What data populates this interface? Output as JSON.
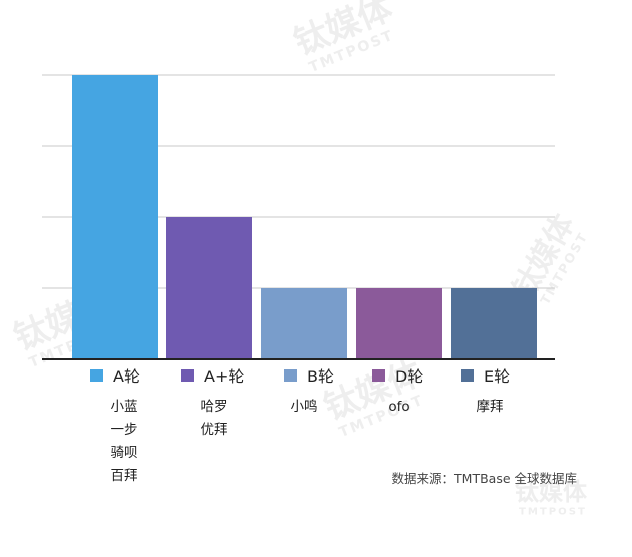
{
  "chart_data": {
    "type": "bar",
    "categories": [
      "A轮",
      "A+轮",
      "B轮",
      "D轮",
      "E轮"
    ],
    "values": [
      4,
      2,
      1,
      1,
      1
    ],
    "ylim": [
      0,
      4
    ],
    "grid": true,
    "legend_position": "bottom",
    "colors": [
      "#45a5e2",
      "#6f5ab1",
      "#799dcb",
      "#8b5a9a",
      "#527097"
    ],
    "companies": [
      [
        "小蓝",
        "一步",
        "骑呗",
        "百拜"
      ],
      [
        "哈罗",
        "优拜"
      ],
      [
        "小鸣"
      ],
      [
        "ofo"
      ],
      [
        "摩拜"
      ]
    ],
    "source_note": "数据来源：TMTBase 全球数据库"
  },
  "watermark": {
    "brand": "钛媒体",
    "brand_latin": "TMTPOST"
  }
}
